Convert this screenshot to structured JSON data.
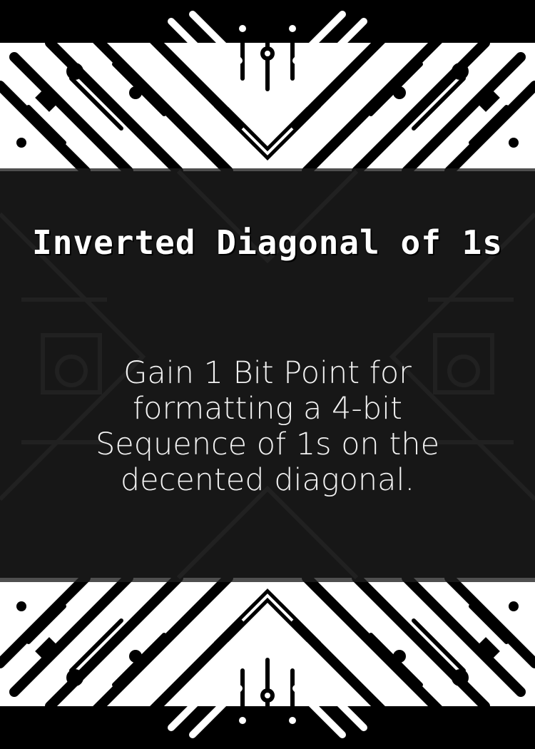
{
  "card": {
    "title": "Inverted Diagonal of 1s",
    "description": "Gain 1 Bit Point for formatting a 4-bit Sequence of 1s on the decented diagonal.",
    "art_icon": "circuit-board-pattern-icon"
  },
  "colors": {
    "background": "#000000",
    "circuit": "#ffffff",
    "panel": "#1e1e1e",
    "text": "#ffffff"
  }
}
